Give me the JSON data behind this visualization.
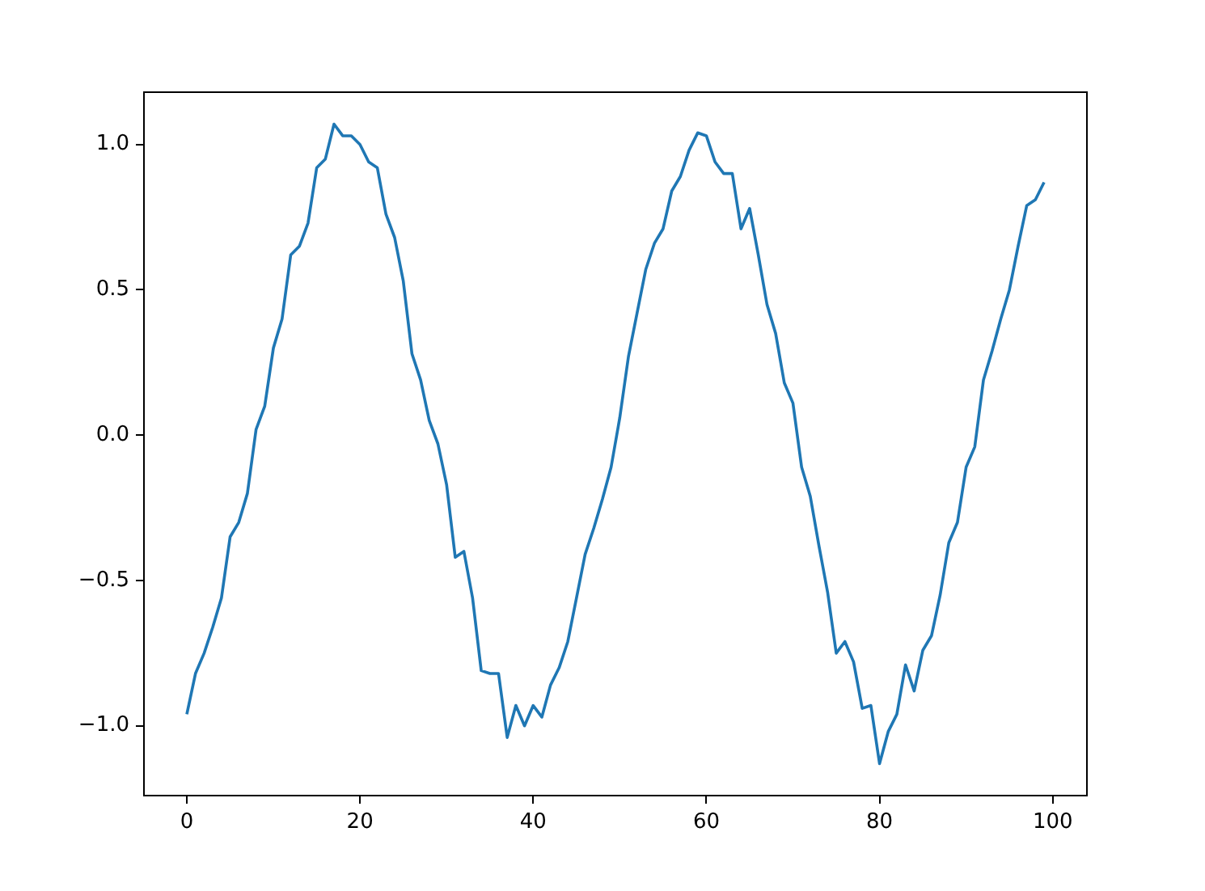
{
  "chart_data": {
    "type": "line",
    "x": [
      0,
      1,
      2,
      3,
      4,
      5,
      6,
      7,
      8,
      9,
      10,
      11,
      12,
      13,
      14,
      15,
      16,
      17,
      18,
      19,
      20,
      21,
      22,
      23,
      24,
      25,
      26,
      27,
      28,
      29,
      30,
      31,
      32,
      33,
      34,
      35,
      36,
      37,
      38,
      39,
      40,
      41,
      42,
      43,
      44,
      45,
      46,
      47,
      48,
      49,
      50,
      51,
      52,
      53,
      54,
      55,
      56,
      57,
      58,
      59,
      60,
      61,
      62,
      63,
      64,
      65,
      66,
      67,
      68,
      69,
      70,
      71,
      72,
      73,
      74,
      75,
      76,
      77,
      78,
      79,
      80,
      81,
      82,
      83,
      84,
      85,
      86,
      87,
      88,
      89,
      90,
      91,
      92,
      93,
      94,
      95,
      96,
      97,
      98,
      99
    ],
    "series": [
      {
        "color": "#1f77b4",
        "values": [
          -0.96,
          -0.82,
          -0.75,
          -0.66,
          -0.56,
          -0.35,
          -0.3,
          -0.2,
          0.02,
          0.1,
          0.3,
          0.4,
          0.62,
          0.65,
          0.73,
          0.92,
          0.95,
          1.07,
          1.03,
          1.03,
          1.0,
          0.94,
          0.92,
          0.76,
          0.68,
          0.53,
          0.28,
          0.19,
          0.05,
          -0.03,
          -0.17,
          -0.42,
          -0.4,
          -0.56,
          -0.81,
          -0.82,
          -0.82,
          -1.04,
          -0.93,
          -1.0,
          -0.93,
          -0.97,
          -0.86,
          -0.8,
          -0.71,
          -0.56,
          -0.41,
          -0.32,
          -0.22,
          -0.11,
          0.06,
          0.27,
          0.42,
          0.57,
          0.66,
          0.71,
          0.84,
          0.89,
          0.98,
          1.04,
          1.03,
          0.94,
          0.9,
          0.9,
          0.71,
          0.78,
          0.62,
          0.45,
          0.35,
          0.18,
          0.11,
          -0.11,
          -0.21,
          -0.38,
          -0.54,
          -0.75,
          -0.71,
          -0.78,
          -0.94,
          -0.93,
          -1.13,
          -1.02,
          -0.96,
          -0.79,
          -0.88,
          -0.74,
          -0.69,
          -0.55,
          -0.37,
          -0.3,
          -0.11,
          -0.04,
          0.19,
          0.29,
          0.4,
          0.5,
          0.65,
          0.79,
          0.81,
          0.87
        ]
      }
    ],
    "xlim": [
      -4.95,
      103.95
    ],
    "ylim": [
      -1.24,
      1.18
    ],
    "xticks": [
      0,
      20,
      40,
      60,
      80,
      100
    ],
    "yticks": [
      {
        "value": -1.0,
        "label": "−1.0"
      },
      {
        "value": -0.5,
        "label": "−0.5"
      },
      {
        "value": 0,
        "label": "0.0"
      },
      {
        "value": 0.5,
        "label": "0.5"
      },
      {
        "value": 1.0,
        "label": "1.0"
      }
    ]
  }
}
